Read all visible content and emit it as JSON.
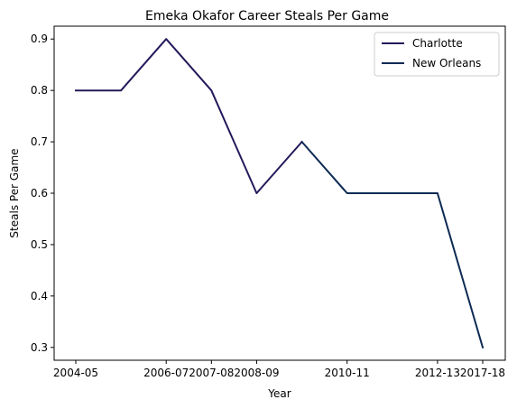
{
  "chart_data": {
    "type": "line",
    "title": "Emeka Okafor Career Steals Per Game",
    "xlabel": "Year",
    "ylabel": "Steals Per Game",
    "ylim": [
      0.275,
      0.925
    ],
    "yticks": [
      0.3,
      0.4,
      0.5,
      0.6,
      0.7,
      0.8,
      0.9
    ],
    "ytick_labels": [
      "0.3",
      "0.4",
      "0.5",
      "0.6",
      "0.7",
      "0.8",
      "0.9"
    ],
    "xticks": [
      "2004-05",
      "2006-07",
      "2007-08",
      "2008-09",
      "2010-11",
      "2012-13",
      "2017-18"
    ],
    "grid": false,
    "legend_position": "top-right",
    "series": [
      {
        "name": "Charlotte",
        "color": "#23195a",
        "points": [
          {
            "x": "2004-05",
            "y": 0.8
          },
          {
            "x": "2005-06",
            "y": 0.8
          },
          {
            "x": "2006-07",
            "y": 0.9
          },
          {
            "x": "2007-08",
            "y": 0.8
          },
          {
            "x": "2008-09",
            "y": 0.6
          },
          {
            "x": "2009-10",
            "y": 0.7
          }
        ]
      },
      {
        "name": "New Orleans",
        "color": "#0d2a54",
        "points": [
          {
            "x": "2009-10",
            "y": 0.7
          },
          {
            "x": "2010-11",
            "y": 0.6
          },
          {
            "x": "2011-12",
            "y": 0.6
          },
          {
            "x": "2012-13",
            "y": 0.6
          },
          {
            "x": "2017-18",
            "y": 0.3
          }
        ]
      }
    ]
  }
}
